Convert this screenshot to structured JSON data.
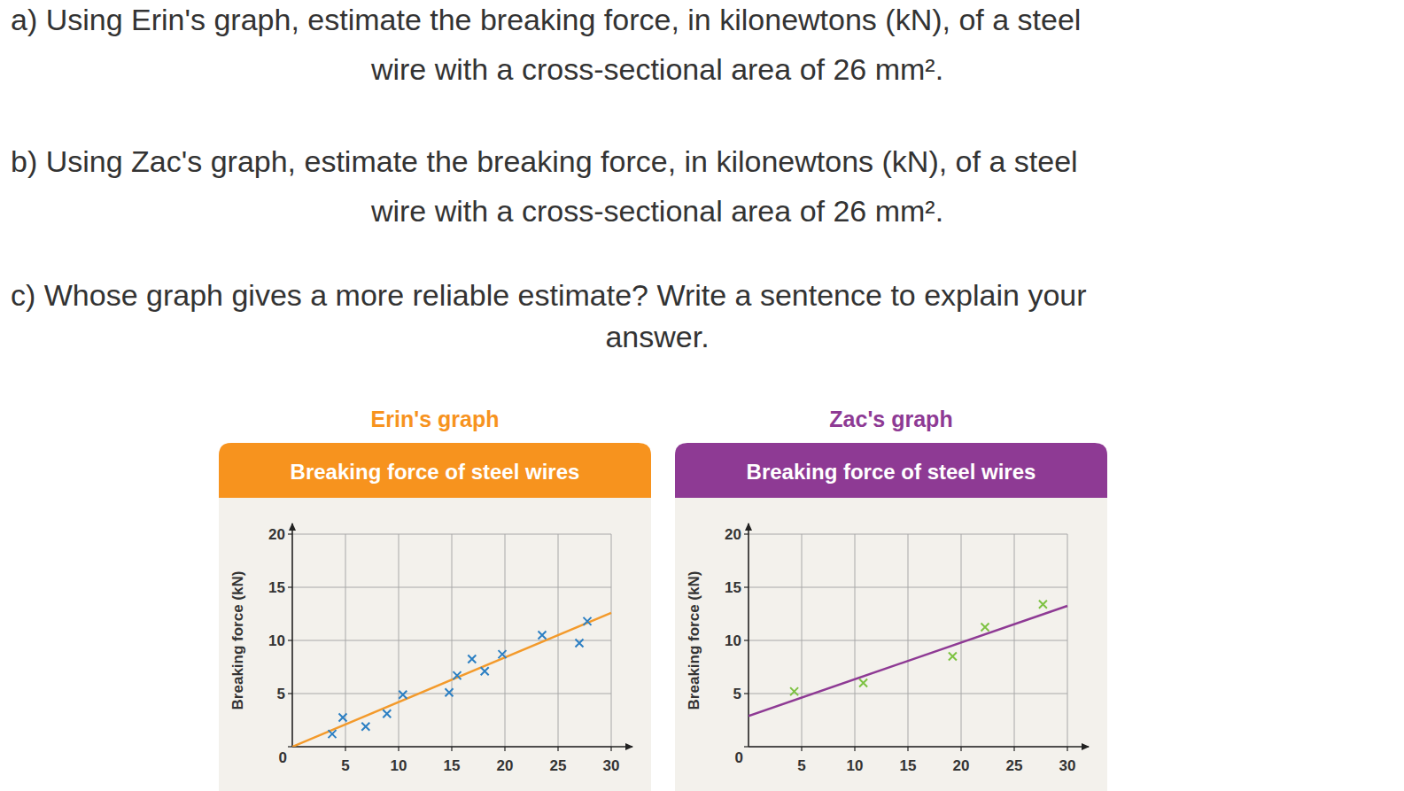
{
  "questions": [
    [
      "a) Using Erin's graph, estimate the breaking force, in kilonewtons (kN), of a steel",
      "wire with a cross-sectional area of 26 mm²."
    ],
    [
      "b) Using Zac's graph, estimate the breaking force, in kilonewtons (kN), of a steel",
      "wire with a cross-sectional area of 26 mm²."
    ],
    [
      "c) Whose graph gives a more reliable estimate? Write a sentence to explain your",
      "answer."
    ]
  ],
  "chart_data": [
    {
      "type": "scatter",
      "subtitle": "Erin's graph",
      "title": "Breaking force of steel wires",
      "color": "#f7931e",
      "y_label": "Breaking force (kN)",
      "xlim": [
        0,
        32
      ],
      "ylim": [
        0,
        21
      ],
      "xticks": [
        5,
        10,
        15,
        20,
        25,
        30
      ],
      "yticks": [
        0,
        5,
        10,
        15,
        20
      ],
      "grid": true,
      "series": [
        {
          "type": "scatter",
          "marker": "x",
          "color": "#2b7fc3",
          "x": [
            3.75,
            4.75,
            6.9,
            8.9,
            10.4,
            14.75,
            15.5,
            16.9,
            18.1,
            19.75,
            23.5,
            27,
            27.75
          ],
          "values": [
            1.2,
            2.75,
            1.9,
            3.1,
            4.9,
            5.1,
            6.7,
            8.25,
            7.1,
            8.7,
            10.5,
            9.75,
            11.8
          ]
        },
        {
          "type": "line",
          "color": "#f39a2b",
          "x": [
            0,
            30
          ],
          "values": [
            0,
            12.6
          ]
        }
      ]
    },
    {
      "type": "scatter",
      "subtitle": "Zac's graph",
      "title": "Breaking force of steel wires",
      "color": "#8e3a94",
      "y_label": "Breaking force (kN)",
      "xlim": [
        0,
        32
      ],
      "ylim": [
        0,
        21
      ],
      "xticks": [
        5,
        10,
        15,
        20,
        25,
        30
      ],
      "yticks": [
        0,
        5,
        10,
        15,
        20
      ],
      "grid": true,
      "series": [
        {
          "type": "scatter",
          "marker": "x",
          "color": "#7dc242",
          "x": [
            4.3,
            10.8,
            19.2,
            22.25,
            27.7
          ],
          "values": [
            5.2,
            6,
            8.5,
            11.25,
            13.4
          ]
        },
        {
          "type": "line",
          "color": "#8e3a94",
          "x": [
            0,
            30
          ],
          "values": [
            2.9,
            13.25
          ]
        }
      ]
    }
  ]
}
